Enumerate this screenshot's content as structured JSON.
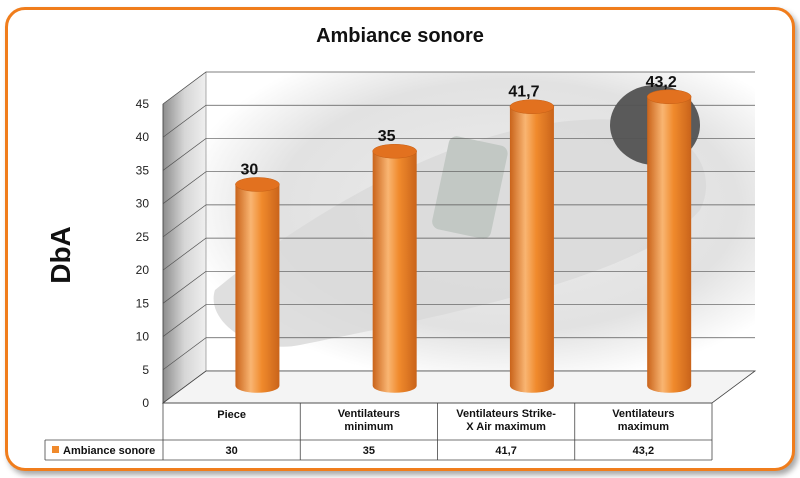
{
  "chart_data": {
    "type": "bar",
    "title": "Ambiance sonore",
    "ylabel": "DbA",
    "xlabel": "",
    "categories": [
      "Piece",
      "Ventilateurs minimum",
      "Ventilateurs Strike-X Air maximum",
      "Ventilateurs maximum"
    ],
    "category_lines": [
      [
        "Piece"
      ],
      [
        "Ventilateurs",
        "minimum"
      ],
      [
        "Ventilateurs Strike-",
        "X Air maximum"
      ],
      [
        "Ventilateurs",
        "maximum"
      ]
    ],
    "series": [
      {
        "name": "Ambiance sonore",
        "values": [
          30,
          35,
          41.7,
          43.2
        ],
        "labels": [
          "30",
          "35",
          "41,7",
          "43,2"
        ]
      }
    ],
    "ylim": [
      0,
      45
    ],
    "yticks": [
      0,
      5,
      10,
      15,
      20,
      25,
      30,
      35,
      40,
      45
    ],
    "grid": true,
    "legend": "data-table",
    "colors": {
      "bar": "#f08a2c",
      "bar_dark": "#c9631a",
      "bar_light": "#f9b572",
      "frame": "#f07d1c"
    }
  }
}
